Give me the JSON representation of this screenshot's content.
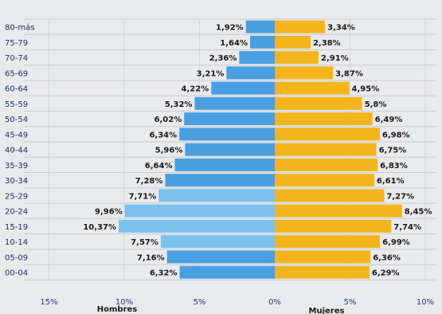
{
  "chart_data": {
    "type": "bar",
    "orientation": "horizontal",
    "subtype": "population-pyramid",
    "categories": [
      "80-más",
      "75-79",
      "70-74",
      "65-69",
      "60-64",
      "55-59",
      "50-54",
      "45-49",
      "40-44",
      "35-39",
      "30-34",
      "25-29",
      "20-24",
      "15-19",
      "10-14",
      "05-09",
      "00-04"
    ],
    "series": [
      {
        "name": "Hombres",
        "color": "#4a9fe0",
        "values": [
          1.92,
          1.64,
          2.36,
          3.21,
          4.22,
          5.32,
          6.02,
          6.34,
          5.96,
          6.64,
          7.28,
          7.71,
          9.96,
          10.37,
          7.57,
          7.16,
          6.32
        ],
        "labels": [
          "1,92%",
          "1,64%",
          "2,36%",
          "3,21%",
          "4,22%",
          "5,32%",
          "6,02%",
          "6,34%",
          "5,96%",
          "6,64%",
          "7,28%",
          "7,71%",
          "9,96%",
          "10,37%",
          "7,57%",
          "7,16%",
          "6,32%"
        ]
      },
      {
        "name": "Mujeres",
        "color": "#f2b51c",
        "values": [
          3.34,
          2.38,
          2.91,
          3.87,
          4.95,
          5.8,
          6.49,
          6.98,
          6.75,
          6.83,
          6.61,
          7.27,
          8.45,
          7.74,
          6.99,
          6.36,
          6.29
        ],
        "labels": [
          "3,34%",
          "2,38%",
          "2,91%",
          "3,87%",
          "4,95%",
          "5,8%",
          "6,49%",
          "6,98%",
          "6,75%",
          "6,83%",
          "6,61%",
          "7,27%",
          "8,45%",
          "7,74%",
          "6,99%",
          "6,36%",
          "6,29%"
        ]
      }
    ],
    "x_ticks": [
      "15%",
      "10%",
      "5%",
      "0%",
      "5%",
      "10%"
    ],
    "xlim": [
      -15,
      10
    ],
    "grid": true,
    "legend": "below-axis"
  }
}
